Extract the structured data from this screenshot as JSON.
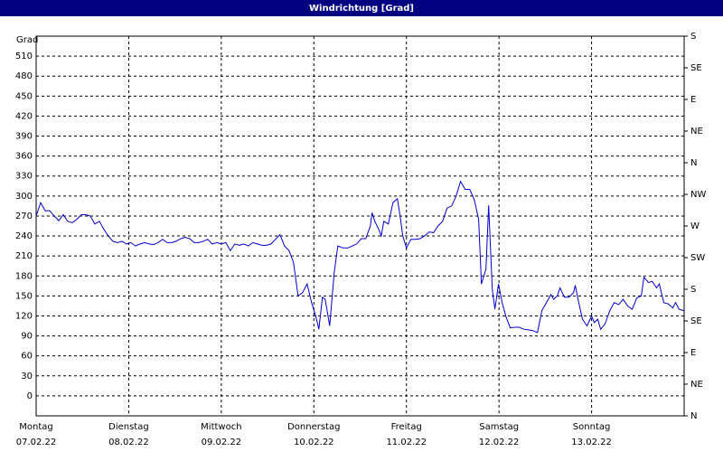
{
  "chart_data": {
    "type": "line",
    "title": "Windrichtung [Grad]",
    "y_label": "Grad",
    "xlim": [
      0,
      7
    ],
    "xticks": [
      {
        "value": 0,
        "label": "Montag"
      },
      {
        "value": 1,
        "label": "Dienstag"
      },
      {
        "value": 2,
        "label": "Mittwoch"
      },
      {
        "value": 3,
        "label": "Donnerstag"
      },
      {
        "value": 4,
        "label": "Freitag"
      },
      {
        "value": 5,
        "label": "Samstag"
      },
      {
        "value": 6,
        "label": "Sonntag"
      }
    ],
    "xtick_dates": [
      "07.02.22",
      "08.02.22",
      "09.02.22",
      "10.02.22",
      "11.02.22",
      "12.02.22",
      "13.02.22"
    ],
    "ylim": [
      -30,
      540
    ],
    "yticks": [
      0,
      30,
      60,
      90,
      120,
      150,
      180,
      210,
      240,
      270,
      300,
      330,
      360,
      390,
      420,
      450,
      480,
      510
    ],
    "y2lim": [
      0,
      540
    ],
    "y2ticks": [
      {
        "value": 0,
        "label": "N"
      },
      {
        "value": 45,
        "label": "NE"
      },
      {
        "value": 90,
        "label": "E"
      },
      {
        "value": 135,
        "label": "SE"
      },
      {
        "value": 180,
        "label": "S"
      },
      {
        "value": 225,
        "label": "SW"
      },
      {
        "value": 270,
        "label": "W"
      },
      {
        "value": 315,
        "label": "NW"
      },
      {
        "value": 360,
        "label": "N"
      },
      {
        "value": 405,
        "label": "NE"
      },
      {
        "value": 450,
        "label": "E"
      },
      {
        "value": 495,
        "label": "SE"
      },
      {
        "value": 540,
        "label": "S"
      }
    ],
    "grid": true,
    "color": "#0000cc",
    "x": [
      0,
      0.049,
      0.098,
      0.146,
      0.195,
      0.244,
      0.293,
      0.341,
      0.39,
      0.439,
      0.488,
      0.537,
      0.585,
      0.634,
      0.683,
      0.732,
      0.78,
      0.829,
      0.878,
      0.927,
      0.976,
      1.024,
      1.073,
      1.122,
      1.171,
      1.22,
      1.268,
      1.317,
      1.366,
      1.415,
      1.463,
      1.512,
      1.561,
      1.61,
      1.659,
      1.707,
      1.756,
      1.805,
      1.854,
      1.902,
      1.951,
      2.0,
      2.049,
      2.098,
      2.146,
      2.195,
      2.244,
      2.293,
      2.341,
      2.39,
      2.439,
      2.488,
      2.537,
      2.585,
      2.634,
      2.683,
      2.732,
      2.78,
      2.829,
      2.878,
      2.927,
      2.976,
      3.024,
      3.054,
      3.093,
      3.122,
      3.171,
      3.22,
      3.259,
      3.317,
      3.366,
      3.415,
      3.463,
      3.512,
      3.561,
      3.61,
      3.629,
      3.659,
      3.707,
      3.727,
      3.756,
      3.805,
      3.854,
      3.902,
      3.932,
      3.961,
      4.0,
      4.049,
      4.098,
      4.146,
      4.195,
      4.244,
      4.293,
      4.341,
      4.39,
      4.439,
      4.488,
      4.537,
      4.585,
      4.634,
      4.683,
      4.732,
      4.78,
      4.81,
      4.859,
      4.888,
      4.927,
      4.956,
      4.995,
      5.034,
      5.073,
      5.122,
      5.171,
      5.22,
      5.268,
      5.317,
      5.366,
      5.415,
      5.463,
      5.512,
      5.561,
      5.59,
      5.629,
      5.659,
      5.707,
      5.756,
      5.805,
      5.824,
      5.854,
      5.902,
      5.951,
      6.0,
      6.029,
      6.068,
      6.098,
      6.146,
      6.195,
      6.244,
      6.293,
      6.341,
      6.39,
      6.439,
      6.488,
      6.537,
      6.566,
      6.615,
      6.654,
      6.702,
      6.732,
      6.78,
      6.829,
      6.878,
      6.907,
      6.946,
      6.995
    ],
    "values": [
      270,
      290,
      278,
      278,
      270,
      263,
      272,
      262,
      260,
      265,
      272,
      272,
      270,
      258,
      262,
      250,
      240,
      232,
      230,
      232,
      228,
      230,
      225,
      228,
      230,
      228,
      227,
      230,
      235,
      230,
      230,
      232,
      236,
      238,
      236,
      230,
      230,
      232,
      235,
      228,
      230,
      228,
      230,
      218,
      228,
      226,
      228,
      225,
      230,
      228,
      226,
      226,
      228,
      235,
      242,
      225,
      218,
      200,
      150,
      155,
      168,
      140,
      118,
      100,
      148,
      145,
      105,
      185,
      225,
      222,
      222,
      225,
      228,
      236,
      236,
      255,
      275,
      262,
      248,
      240,
      262,
      258,
      290,
      296,
      270,
      240,
      222,
      235,
      235,
      236,
      240,
      246,
      245,
      255,
      262,
      282,
      285,
      300,
      322,
      310,
      310,
      295,
      265,
      168,
      190,
      286,
      160,
      130,
      168,
      140,
      120,
      102,
      103,
      103,
      100,
      99,
      98,
      95,
      128,
      140,
      152,
      145,
      150,
      162,
      148,
      148,
      155,
      166,
      145,
      115,
      105,
      120,
      110,
      115,
      100,
      108,
      127,
      140,
      137,
      145,
      135,
      130,
      147,
      150,
      178,
      170,
      172,
      162,
      168,
      140,
      138,
      132,
      140,
      130,
      128
    ]
  }
}
